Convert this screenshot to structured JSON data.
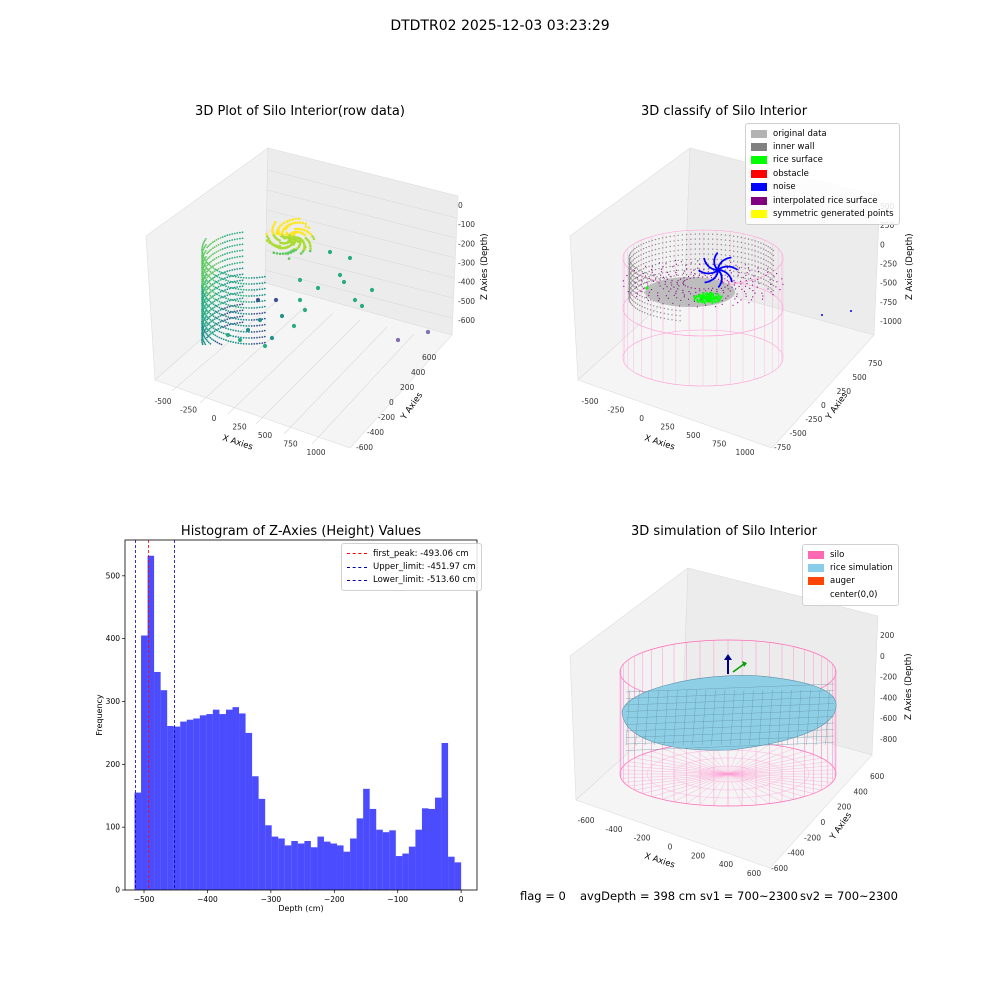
{
  "suptitle": "DTDTR02 2025-12-03 03:23:29",
  "panel1": {
    "title": "3D Plot of Silo Interior(row data)",
    "xlabel": "X Axies",
    "ylabel": "Y Axies",
    "zlabel": "Z Axies (Depth)",
    "xticks": [
      "-500",
      "-250",
      "0",
      "250",
      "500",
      "750",
      "1000"
    ],
    "yticks": [
      "600",
      "400",
      "200",
      "0",
      "-200",
      "-400",
      "-600"
    ],
    "zticks": [
      "0",
      "-100",
      "-200",
      "-300",
      "-400",
      "-500",
      "-600"
    ]
  },
  "panel2": {
    "title": "3D classify of Silo Interior",
    "xlabel": "X Axies",
    "ylabel": "Y Axies",
    "zlabel": "Z Axies (Depth)",
    "xticks": [
      "-500",
      "-250",
      "0",
      "250",
      "500",
      "750",
      "1000"
    ],
    "yticks": [
      "750",
      "500",
      "250",
      "0",
      "-250",
      "-500",
      "-750"
    ],
    "zticks": [
      "500",
      "250",
      "0",
      "-250",
      "-500",
      "-750",
      "-1000"
    ],
    "legend": [
      {
        "label": "original data",
        "color": "#b3b3b3"
      },
      {
        "label": "inner wall",
        "color": "#808080"
      },
      {
        "label": "rice surface",
        "color": "#00ff00"
      },
      {
        "label": "obstacle",
        "color": "#ff0000"
      },
      {
        "label": "noise",
        "color": "#0000ff"
      },
      {
        "label": "interpolated rice surface",
        "color": "#800080"
      },
      {
        "label": "symmetric generated points",
        "color": "#ffff00"
      }
    ]
  },
  "panel3": {
    "title": "Histogram of Z-Axies (Height) Values",
    "legend": [
      {
        "label": "first_peak: -493.06 cm",
        "color": "#ff0000"
      },
      {
        "label": "Upper_limit: -451.97 cm",
        "color": "#0000aa"
      },
      {
        "label": "Lower_limit: -513.60 cm",
        "color": "#0000aa"
      }
    ]
  },
  "panel4": {
    "title": "3D simulation of Silo Interior",
    "xlabel": "X Axies",
    "ylabel": "Y Axies",
    "zlabel": "Z Axies (Depth)",
    "xticks": [
      "-600",
      "-400",
      "-200",
      "0",
      "200",
      "400",
      "600"
    ],
    "yticks": [
      "600",
      "400",
      "200",
      "0",
      "-200",
      "-400",
      "-600"
    ],
    "zticks": [
      "200",
      "0",
      "-200",
      "-400",
      "-600",
      "-800"
    ],
    "legend": [
      {
        "label": "silo",
        "color": "#ff69b4"
      },
      {
        "label": "rice simulation",
        "color": "#87ceeb"
      },
      {
        "label": "auger",
        "color": "#ff4500"
      },
      {
        "label": "center(0,0)",
        "color": ""
      }
    ]
  },
  "status": {
    "flag": "flag = 0",
    "avg": "avgDepth = 398 cm",
    "sv1": "sv1 = 700~2300",
    "sv2": "sv2 = 700~2300"
  },
  "chart_data": [
    {
      "type": "bar",
      "title": "Histogram of Z-Axies (Height) Values",
      "xlabel": "Depth (cm)",
      "ylabel": "Frequency",
      "xlim": [
        -530,
        25
      ],
      "ylim": [
        0,
        557
      ],
      "xticks": [
        -500,
        -400,
        -300,
        -200,
        -100,
        0
      ],
      "yticks": [
        0,
        100,
        200,
        300,
        400,
        500
      ],
      "bar_color": "#0000ff",
      "bin_start": -515,
      "bin_width": 10.3,
      "values": [
        155,
        405,
        532,
        347,
        318,
        261,
        260,
        268,
        271,
        273,
        278,
        280,
        287,
        280,
        287,
        291,
        281,
        250,
        181,
        145,
        103,
        85,
        82,
        71,
        78,
        74,
        78,
        68,
        85,
        77,
        74,
        71,
        61,
        82,
        114,
        161,
        129,
        96,
        92,
        95,
        54,
        58,
        69,
        96,
        130,
        129,
        147,
        234,
        53,
        44
      ],
      "vlines": [
        {
          "x": -493.06,
          "color": "#ff0000",
          "label": "first_peak: -493.06 cm"
        },
        {
          "x": -451.97,
          "color": "#0000aa",
          "label": "Upper_limit: -451.97 cm"
        },
        {
          "x": -513.6,
          "color": "#0000aa",
          "label": "Lower_limit: -513.60 cm"
        }
      ],
      "legend_position": "top-right"
    }
  ]
}
